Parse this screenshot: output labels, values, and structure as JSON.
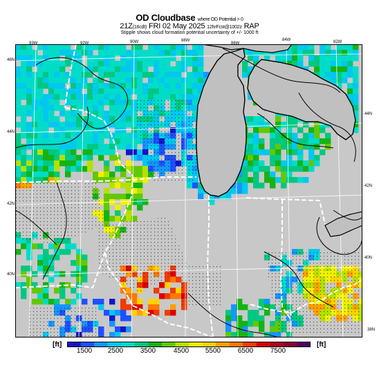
{
  "header": {
    "title": "OD Cloudbase",
    "title_note": "where OD Potential > 0",
    "time_main": "21Z",
    "time_local": "(16cdt)",
    "date": "FRI 02 May 2025",
    "model_note": "12hrFcst@1002z",
    "model": "RAP",
    "stipple_note": "Stipple shows cloud formation potential uncertainty of +/- 1000 ft"
  },
  "lon_labels": [
    "93W",
    "92W",
    "90W",
    "88W",
    "86W",
    "84W",
    "82W"
  ],
  "lat_labels_left": [
    "46N",
    "44N",
    "42N",
    "40N"
  ],
  "lat_labels_right": [
    "44N",
    "42N",
    "40N",
    "38N"
  ],
  "colorbar": {
    "unit_left": "[ft]",
    "unit_right": "[ft]",
    "ticks": [
      "1500",
      "2500",
      "3500",
      "4500",
      "5500",
      "6500",
      "7500"
    ],
    "colors": [
      "#1414c8",
      "#1e50ff",
      "#1496ff",
      "#00c8f0",
      "#00dcc8",
      "#00c882",
      "#14b414",
      "#64c800",
      "#b4e100",
      "#f0f000",
      "#ffd200",
      "#ffa000",
      "#ff7800",
      "#f03c00",
      "#dc0000",
      "#b4001e",
      "#8c0032",
      "#500064"
    ]
  },
  "colors": {
    "background": "#c8c8c8",
    "lake": "#c0c0c0",
    "border": "#ffffff",
    "coast": "#000000"
  }
}
